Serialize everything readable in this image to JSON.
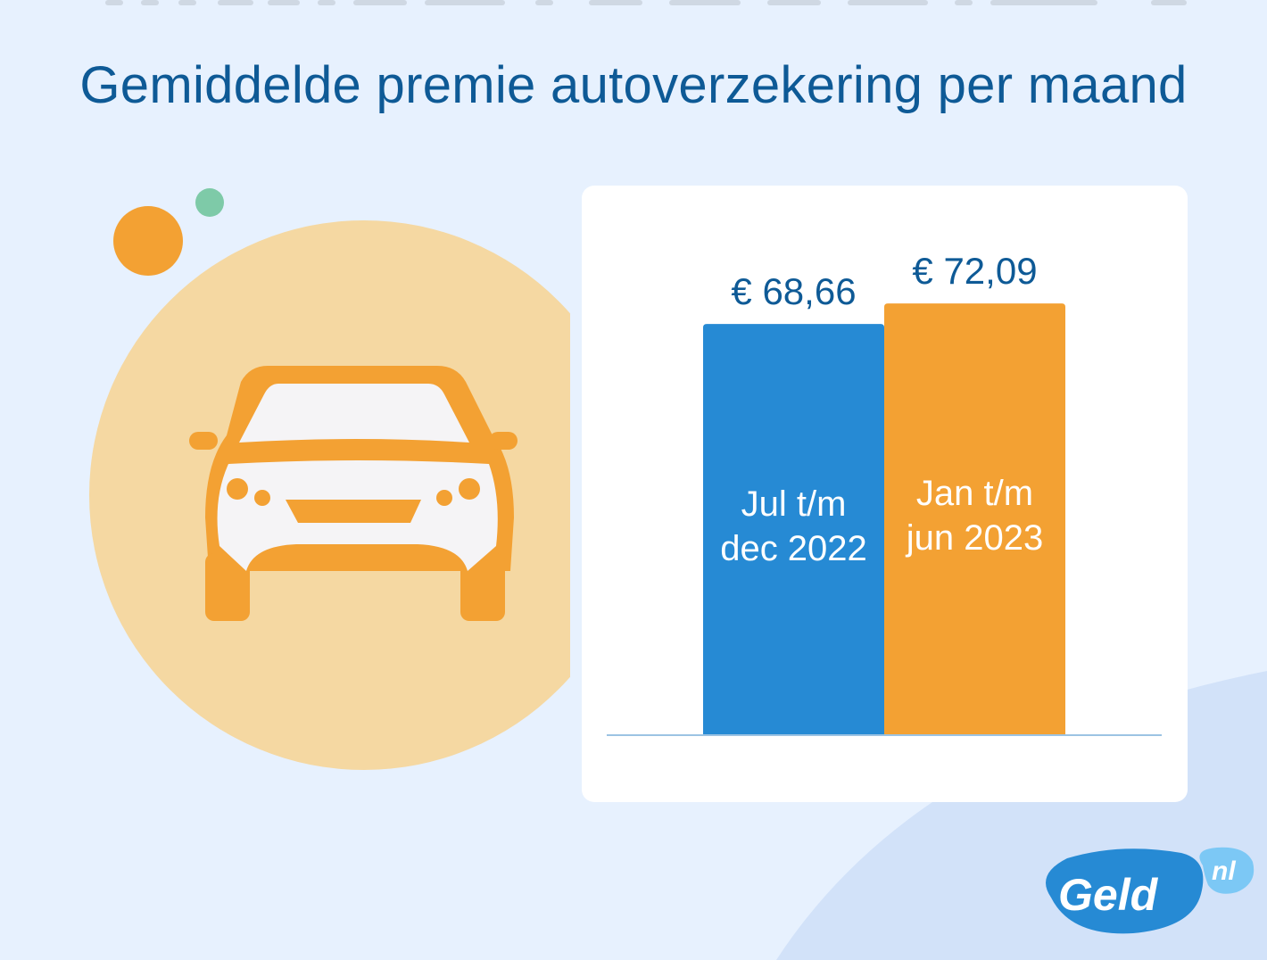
{
  "title": "Gemiddelde premie autoverzekering per maand",
  "colors": {
    "background": "#e7f1fe",
    "title": "#0e5a96",
    "blue_bar": "#268ad4",
    "orange_bar": "#f3a133",
    "value_label": "#0e5a96",
    "axis": "#9cc3e3",
    "circle_peach": "#f5d8a2",
    "dot_orange": "#f3a133",
    "dot_green": "#7ecaa8"
  },
  "illustration": {
    "icon": "car-icon"
  },
  "logo": {
    "main": "Geld",
    "suffix": "nl"
  },
  "chart_data": {
    "type": "bar",
    "title": "Gemiddelde premie autoverzekering per maand",
    "categories": [
      "Jul t/m dec 2022",
      "Jan t/m jun 2023"
    ],
    "category_lines": [
      [
        "Jul t/m",
        "dec 2022"
      ],
      [
        "Jan t/m",
        "jun 2023"
      ]
    ],
    "values": [
      68.66,
      72.09
    ],
    "value_labels": [
      "€ 68,66",
      "€ 72,09"
    ],
    "bar_colors": [
      "#268ad4",
      "#f3a133"
    ],
    "ylim": [
      0,
      73.9
    ],
    "grid": false,
    "xlabel": "",
    "ylabel": ""
  }
}
